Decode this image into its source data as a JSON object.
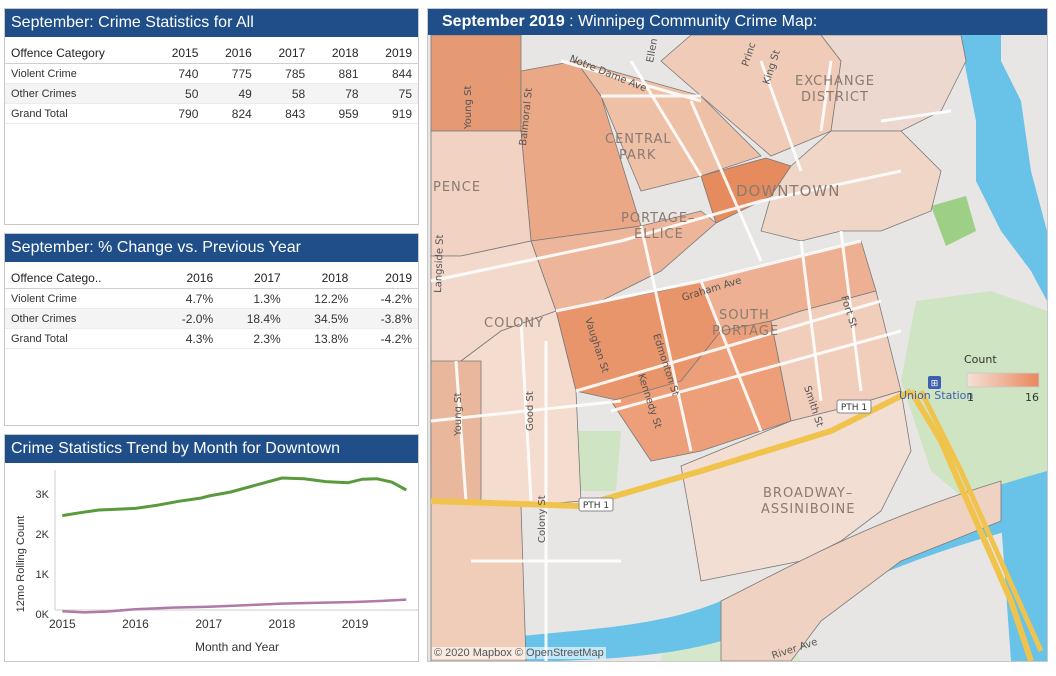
{
  "table_all": {
    "title": "September: Crime Statistics for All",
    "header": [
      "Offence Category",
      "2015",
      "2016",
      "2017",
      "2018",
      "2019"
    ],
    "rows": [
      [
        "Violent Crime",
        "740",
        "775",
        "785",
        "881",
        "844"
      ],
      [
        "Other Crimes",
        "50",
        "49",
        "58",
        "78",
        "75"
      ],
      [
        "Grand Total",
        "790",
        "824",
        "843",
        "959",
        "919"
      ]
    ]
  },
  "table_change": {
    "title": "September: % Change vs. Previous Year",
    "header": [
      "Offence Catego..",
      "2016",
      "2017",
      "2018",
      "2019"
    ],
    "rows": [
      [
        "Violent Crime",
        "4.7%",
        "1.3%",
        "12.2%",
        "-4.2%"
      ],
      [
        "Other Crimes",
        "-2.0%",
        "18.4%",
        "34.5%",
        "-3.8%"
      ],
      [
        "Grand Total",
        "4.3%",
        "2.3%",
        "13.8%",
        "-4.2%"
      ]
    ]
  },
  "trend": {
    "title": "Crime Statistics Trend by Month for Downtown",
    "chart_data": {
      "type": "line",
      "xlabel": "Month and Year",
      "ylabel": "12mo Rolling Count",
      "x_ticks": [
        "2015",
        "2016",
        "2017",
        "2018",
        "2019"
      ],
      "y_ticks": [
        "0K",
        "1K",
        "2K",
        "3K"
      ],
      "x_range": [
        2014.9,
        2019.75
      ],
      "ylim": [
        0,
        3500
      ],
      "series": [
        {
          "color": "#5a9a3c",
          "points": [
            [
              2015.0,
              2460
            ],
            [
              2015.2,
              2520
            ],
            [
              2015.5,
              2600
            ],
            [
              2016.0,
              2640
            ],
            [
              2016.3,
              2720
            ],
            [
              2016.6,
              2820
            ],
            [
              2016.9,
              2900
            ],
            [
              2017.0,
              2950
            ],
            [
              2017.3,
              3050
            ],
            [
              2017.6,
              3200
            ],
            [
              2017.9,
              3350
            ],
            [
              2018.0,
              3400
            ],
            [
              2018.3,
              3380
            ],
            [
              2018.6,
              3310
            ],
            [
              2018.9,
              3280
            ],
            [
              2019.1,
              3370
            ],
            [
              2019.3,
              3380
            ],
            [
              2019.5,
              3300
            ],
            [
              2019.7,
              3100
            ]
          ]
        },
        {
          "color": "#b07aa8",
          "points": [
            [
              2015.0,
              70
            ],
            [
              2015.3,
              40
            ],
            [
              2015.6,
              60
            ],
            [
              2016.0,
              120
            ],
            [
              2016.5,
              160
            ],
            [
              2017.0,
              180
            ],
            [
              2017.5,
              220
            ],
            [
              2018.0,
              260
            ],
            [
              2018.5,
              280
            ],
            [
              2019.0,
              300
            ],
            [
              2019.4,
              330
            ],
            [
              2019.7,
              360
            ]
          ]
        }
      ]
    }
  },
  "map": {
    "title_bold": "September 2019",
    "title_rest": " : Winnipeg Community Crime Map:",
    "attribution": "© 2020 Mapbox  © OpenStreetMap",
    "legend": {
      "title": "Count",
      "min": "1",
      "max": "16"
    },
    "station": "Union Station",
    "highway_label": "PTH 1",
    "labels": {
      "exchange": "EXCHANGE",
      "district": "DISTRICT",
      "central": "CENTRAL",
      "park": "PARK",
      "downtown": "DOWNTOWN",
      "pence": "PENCE",
      "portage": "PORTAGE–",
      "ellice": "ELLICE",
      "colony": "COLONY",
      "south": "SOUTH",
      "portage2": "PORTAGE",
      "broadway": "BROADWAY–",
      "assiniboine": "ASSINIBOINE"
    },
    "streets": {
      "notre_dame": "Notre Dame Ave",
      "young": "Young St",
      "balmoral": "Balmoral St",
      "ellen": "Ellen",
      "princess": "Princ",
      "king": "King St",
      "langside": "Langside St",
      "graham": "Graham Ave",
      "vaughan": "Vaughan St",
      "edmonton": "Edmonton St",
      "kennedy": "Kennedy St",
      "smith": "Smith St",
      "fort": "Fort St",
      "young2": "Young St",
      "good": "Good St",
      "colony": "Colony St",
      "river": "River Ave"
    }
  }
}
